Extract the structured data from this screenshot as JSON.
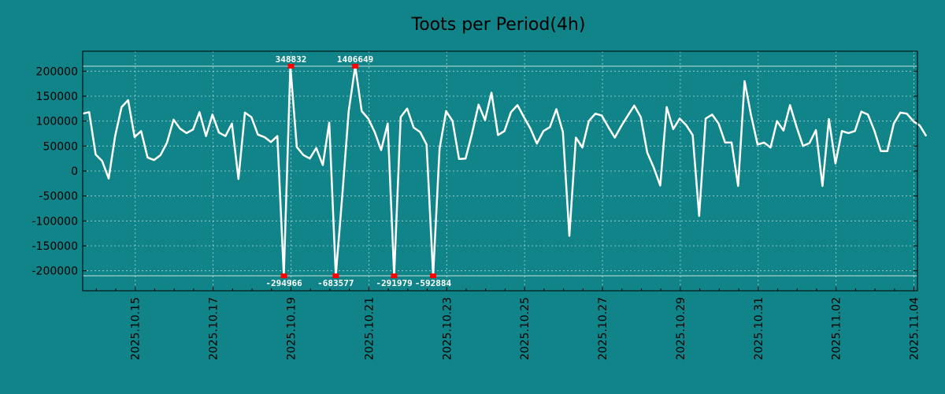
{
  "chart_data": {
    "type": "line",
    "title": "Toots per Period(4h)",
    "xlabel": "",
    "ylabel": "",
    "ylim": [
      -240000,
      240000
    ],
    "xlim_days": [
      -0.35,
      21.09
    ],
    "x_origin_label": "2025.10.14",
    "grid": true,
    "colors": {
      "background": "#108488",
      "line": "#ffffff",
      "marker": "#ff0000",
      "grid": "#a9d6d2",
      "text": "#000000"
    },
    "y_ticks": [
      {
        "value": 200000,
        "label": "200000"
      },
      {
        "value": 150000,
        "label": "150000"
      },
      {
        "value": 100000,
        "label": "100000"
      },
      {
        "value": 50000,
        "label": "50000"
      },
      {
        "value": 0,
        "label": "0"
      },
      {
        "value": -50000,
        "label": "-50000"
      },
      {
        "value": -100000,
        "label": "-100000"
      },
      {
        "value": -150000,
        "label": "-150000"
      },
      {
        "value": -200000,
        "label": "-200000"
      }
    ],
    "x_ticks": [
      {
        "day": 1,
        "label": "2025.10.15"
      },
      {
        "day": 3,
        "label": "2025.10.17"
      },
      {
        "day": 5,
        "label": "2025.10.19"
      },
      {
        "day": 7,
        "label": "2025.10.21"
      },
      {
        "day": 9,
        "label": "2025.10.23"
      },
      {
        "day": 11,
        "label": "2025.10.25"
      },
      {
        "day": 13,
        "label": "2025.10.27"
      },
      {
        "day": 15,
        "label": "2025.10.29"
      },
      {
        "day": 17,
        "label": "2025.10.31"
      },
      {
        "day": 19,
        "label": "2025.11.02"
      },
      {
        "day": 21,
        "label": "2025.11.04"
      }
    ],
    "clip": {
      "upper": 210000,
      "lower": -210000
    },
    "series": [
      {
        "name": "toots",
        "start_day": -0.35,
        "step_days": 0.16667,
        "values": [
          115000,
          118000,
          33000,
          20000,
          -15000,
          70000,
          128000,
          142000,
          68000,
          80000,
          27000,
          22000,
          32000,
          57000,
          103000,
          85000,
          76000,
          83000,
          118000,
          70000,
          113000,
          77000,
          70000,
          95000,
          -16000,
          117000,
          108000,
          73000,
          68000,
          58000,
          70000,
          -210000,
          210000,
          48000,
          32000,
          25000,
          46000,
          12000,
          97000,
          -210000,
          -50000,
          120000,
          210000,
          120000,
          105000,
          78000,
          42000,
          95000,
          -210000,
          108000,
          125000,
          87000,
          78000,
          53000,
          -210000,
          45000,
          120000,
          100000,
          24000,
          25000,
          75000,
          133000,
          102000,
          157000,
          72000,
          80000,
          118000,
          132000,
          108000,
          85000,
          55000,
          80000,
          88000,
          124000,
          78000,
          -130000,
          67000,
          47000,
          100000,
          115000,
          111000,
          88000,
          67000,
          90000,
          111000,
          131000,
          108000,
          37000,
          7000,
          -29000,
          128000,
          84000,
          105000,
          92000,
          72000,
          -90000,
          105000,
          113000,
          95000,
          57000,
          57000,
          -30000,
          180000,
          112000,
          53000,
          57000,
          47000,
          100000,
          81000,
          132000,
          89000,
          50000,
          56000,
          82000,
          -30000,
          104000,
          15000,
          80000,
          76000,
          80000,
          119000,
          113000,
          81000,
          40000,
          40000,
          95000,
          117000,
          115000,
          100000,
          91000,
          70000
        ]
      }
    ],
    "annotations": [
      {
        "day": 4.82,
        "value": -210000,
        "label": "-294966",
        "position": "below"
      },
      {
        "day": 5.0,
        "value": 210000,
        "label": "348832",
        "position": "above"
      },
      {
        "day": 6.15,
        "value": -210000,
        "label": "-683577",
        "position": "below"
      },
      {
        "day": 6.65,
        "value": 210000,
        "label": "1406649",
        "position": "above"
      },
      {
        "day": 7.65,
        "value": -210000,
        "label": "-291979",
        "position": "below"
      },
      {
        "day": 8.65,
        "value": -210000,
        "label": "-592884",
        "position": "below"
      }
    ]
  }
}
